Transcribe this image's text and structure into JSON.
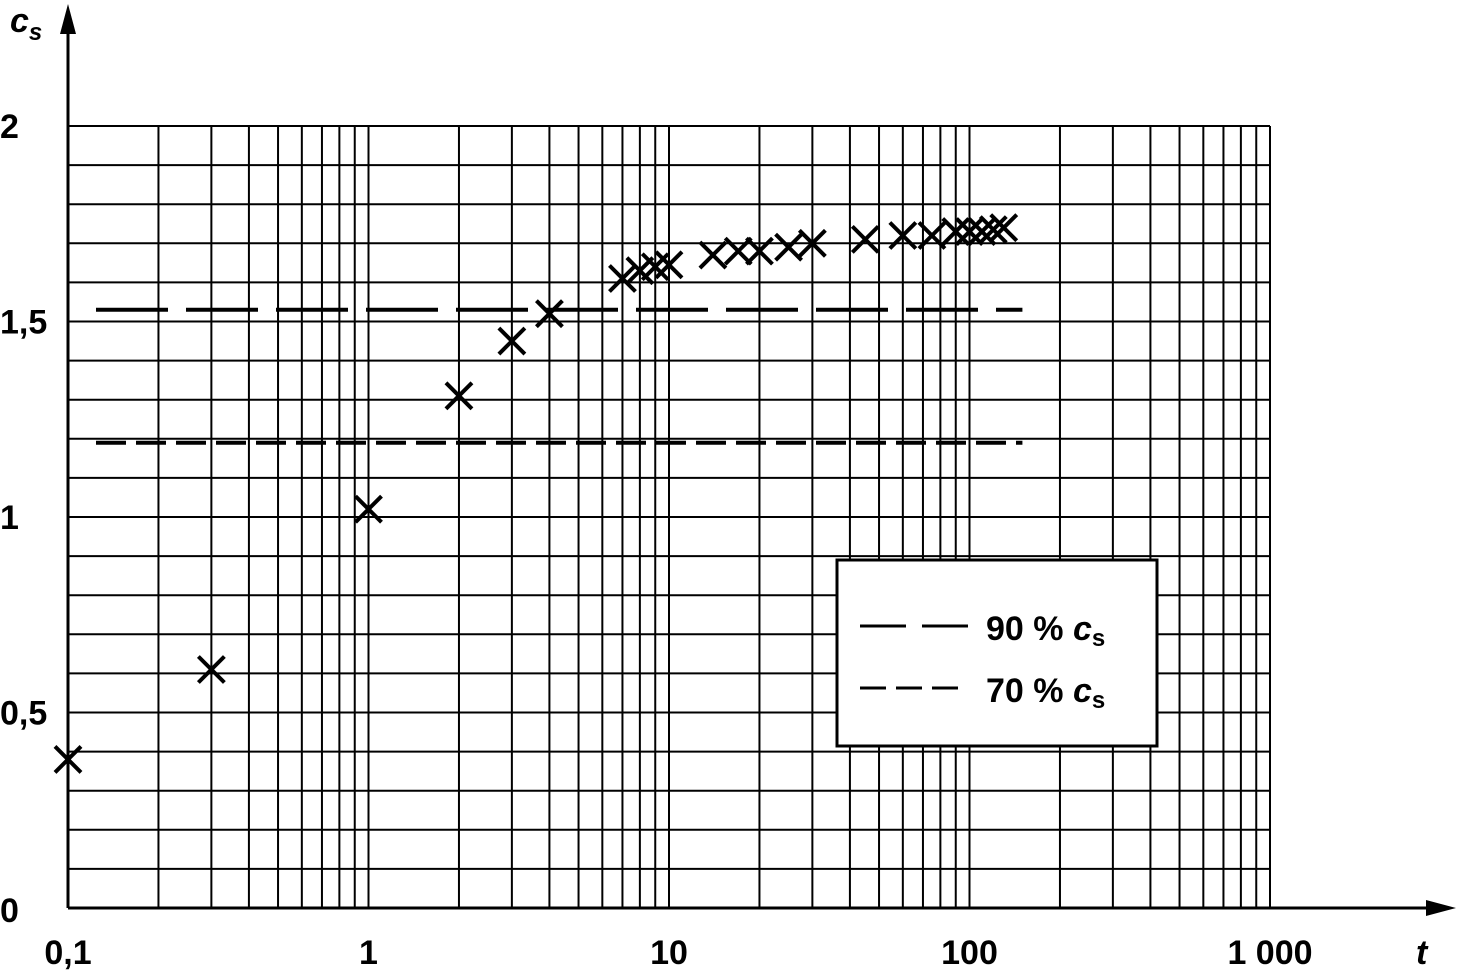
{
  "chart_data": {
    "type": "scatter",
    "title": "",
    "xlabel": "t",
    "ylabel": "c_s",
    "ylabel_main": "c",
    "ylabel_sub": "s",
    "x_scale": "log",
    "xlim": [
      0.1,
      1000
    ],
    "ylim": [
      0,
      2
    ],
    "grid": true,
    "x_ticks": [
      {
        "value": 0.1,
        "label": "0,1"
      },
      {
        "value": 1,
        "label": "1"
      },
      {
        "value": 10,
        "label": "10"
      },
      {
        "value": 100,
        "label": "100"
      },
      {
        "value": 1000,
        "label": "1 000"
      }
    ],
    "y_ticks": [
      {
        "value": 0,
        "label": "0"
      },
      {
        "value": 0.5,
        "label": "0,5"
      },
      {
        "value": 1,
        "label": "1"
      },
      {
        "value": 1.5,
        "label": "1,5"
      },
      {
        "value": 2,
        "label": "2"
      }
    ],
    "points": [
      {
        "x": 0.1,
        "y": 0.38
      },
      {
        "x": 0.3,
        "y": 0.61
      },
      {
        "x": 1,
        "y": 1.02
      },
      {
        "x": 2,
        "y": 1.31
      },
      {
        "x": 3,
        "y": 1.45
      },
      {
        "x": 4,
        "y": 1.52
      },
      {
        "x": 7,
        "y": 1.61
      },
      {
        "x": 8,
        "y": 1.63
      },
      {
        "x": 9,
        "y": 1.64
      },
      {
        "x": 10,
        "y": 1.645
      },
      {
        "x": 14,
        "y": 1.67
      },
      {
        "x": 17,
        "y": 1.68
      },
      {
        "x": 20,
        "y": 1.68
      },
      {
        "x": 25,
        "y": 1.69
      },
      {
        "x": 30,
        "y": 1.7
      },
      {
        "x": 45,
        "y": 1.71
      },
      {
        "x": 60,
        "y": 1.72
      },
      {
        "x": 75,
        "y": 1.72
      },
      {
        "x": 90,
        "y": 1.73
      },
      {
        "x": 100,
        "y": 1.73
      },
      {
        "x": 110,
        "y": 1.73
      },
      {
        "x": 120,
        "y": 1.735
      },
      {
        "x": 130,
        "y": 1.74
      }
    ],
    "reference_lines": [
      {
        "name": "90 % c_s",
        "label_main": "90 % ",
        "label_sym": "c",
        "label_sub": "s",
        "y": 1.53,
        "style": "long-dash",
        "x_range": [
          0.1,
          150
        ]
      },
      {
        "name": "70 % c_s",
        "label_main": "70 % ",
        "label_sym": "c",
        "label_sub": "s",
        "y": 1.19,
        "style": "short-dash",
        "x_range": [
          0.1,
          150
        ]
      }
    ],
    "legend_position": "lower-right"
  }
}
